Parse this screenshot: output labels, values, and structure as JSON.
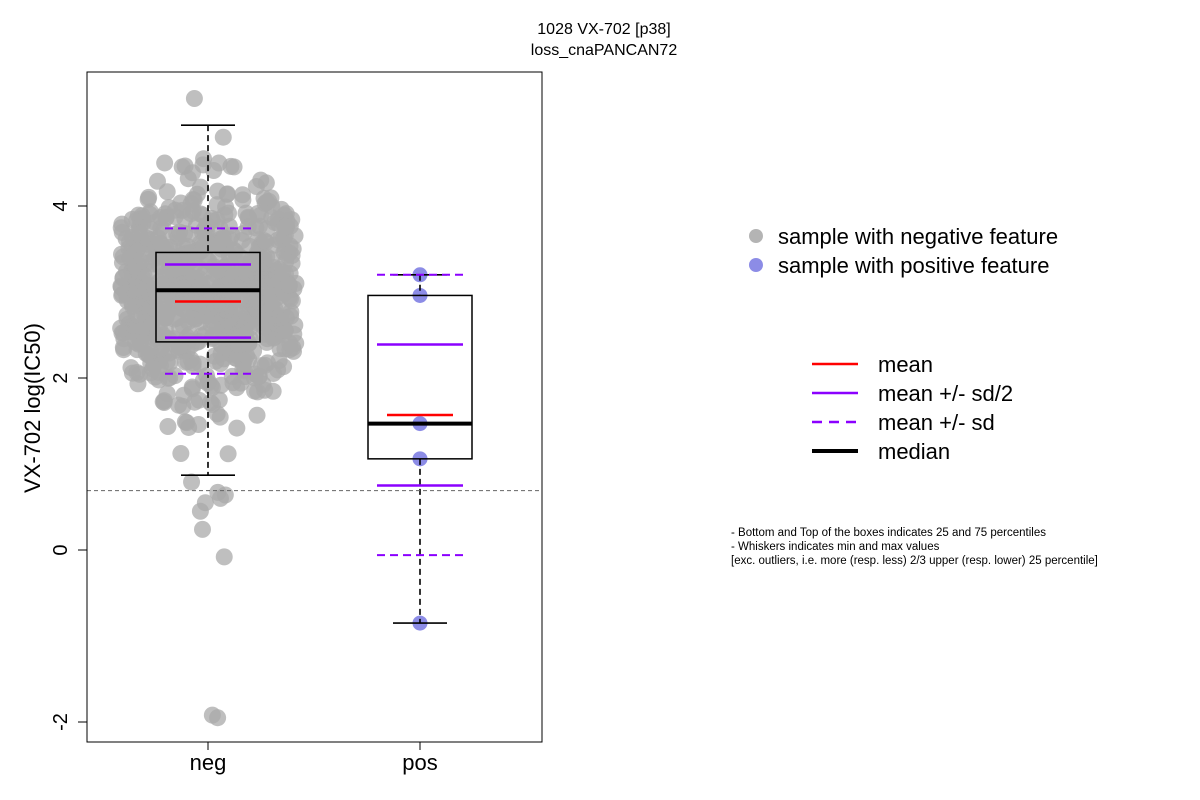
{
  "chart_data": {
    "type": "box",
    "title": "1028 VX-702 [p38]",
    "subtitle": "loss_cnaPANCAN72",
    "ylabel": "VX-702 log(IC50)",
    "xlabel": "",
    "ylim": [
      -2.2,
      5.55
    ],
    "yticks": [
      -2,
      0,
      2,
      4
    ],
    "threshold_line": 0.69,
    "categories": [
      "neg",
      "pos"
    ],
    "groups": [
      {
        "name": "neg",
        "color": "#a9a9a9",
        "n_points": 760,
        "min": 0.87,
        "q1": 2.42,
        "median": 3.02,
        "q3": 3.46,
        "max": 4.94,
        "mean": 2.89,
        "mean_minus_half_sd": 2.47,
        "mean_plus_half_sd": 3.32,
        "mean_minus_sd": 2.05,
        "mean_plus_sd": 3.74,
        "outliers_low": [
          0.79,
          0.67,
          0.64,
          0.6,
          0.55,
          0.45,
          0.24,
          -0.08,
          -1.92,
          -1.95
        ],
        "outliers_high": [
          5.25,
          4.8,
          4.55,
          4.5
        ]
      },
      {
        "name": "pos",
        "color": "#8c8ce6",
        "points": [
          3.2,
          2.96,
          1.47,
          1.06,
          -0.85
        ],
        "min": -0.85,
        "q1": 1.06,
        "median": 1.47,
        "q3": 2.96,
        "max": 3.2,
        "mean": 1.57,
        "mean_minus_half_sd": 0.75,
        "mean_plus_half_sd": 2.39,
        "mean_minus_sd": -0.06,
        "mean_plus_sd": 3.2
      }
    ],
    "legend": {
      "points": [
        {
          "label": "sample with negative feature",
          "color": "#b4b4b4"
        },
        {
          "label": "sample with positive feature",
          "color": "#8c8ce6"
        }
      ],
      "lines": [
        {
          "label": "mean",
          "color": "#ff0000",
          "style": "solid"
        },
        {
          "label": "mean +/- sd/2",
          "color": "#8b00ff",
          "style": "solid"
        },
        {
          "label": "mean +/- sd",
          "color": "#8b00ff",
          "style": "dashed"
        },
        {
          "label": "median",
          "color": "#000000",
          "style": "thick"
        }
      ]
    },
    "notes": [
      "- Bottom and Top of the boxes indicates 25 and 75 percentiles",
      "- Whiskers indicates min and max values",
      "[exc. outliers, i.e. more (resp. less) 2/3 upper (resp. lower) 25 percentile]"
    ]
  }
}
